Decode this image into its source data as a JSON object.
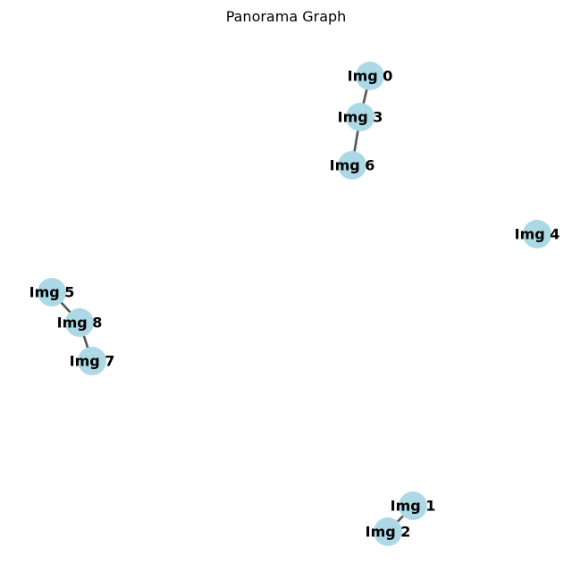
{
  "title": "Panorama Graph",
  "colors": {
    "node_fill": "#add8e6",
    "edge": "#555555",
    "label": "#000000"
  },
  "nodes": [
    {
      "id": "n0",
      "label": "Img 0"
    },
    {
      "id": "n1",
      "label": "Img 1"
    },
    {
      "id": "n2",
      "label": "Img 2"
    },
    {
      "id": "n3",
      "label": "Img 3"
    },
    {
      "id": "n4",
      "label": "Img 4"
    },
    {
      "id": "n5",
      "label": "Img 5"
    },
    {
      "id": "n6",
      "label": "Img 6"
    },
    {
      "id": "n7",
      "label": "Img 7"
    },
    {
      "id": "n8",
      "label": "Img 8"
    }
  ],
  "edges": [
    {
      "source": "n0",
      "target": "n3"
    },
    {
      "source": "n3",
      "target": "n6"
    },
    {
      "source": "n5",
      "target": "n8"
    },
    {
      "source": "n8",
      "target": "n7"
    },
    {
      "source": "n1",
      "target": "n2"
    }
  ]
}
